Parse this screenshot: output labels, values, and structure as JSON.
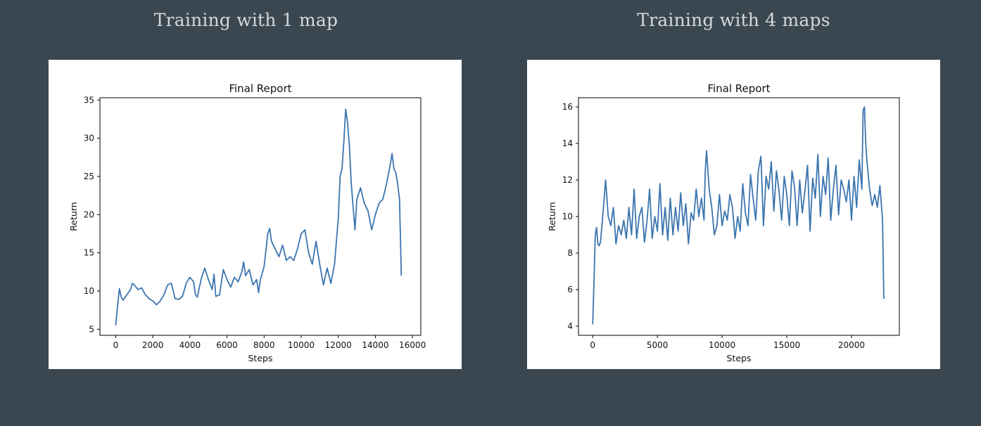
{
  "panels": [
    {
      "heading": "Training with 1 map"
    },
    {
      "heading": "Training with 4 maps"
    }
  ],
  "colors": {
    "background": "#3a4750",
    "line": "#3b75af"
  },
  "chart_data": [
    {
      "type": "line",
      "title": "Final Report",
      "xlabel": "Steps",
      "ylabel": "Return",
      "xlim": [
        -850,
        16450
      ],
      "ylim": [
        4.2,
        35.3
      ],
      "xticks": [
        0,
        2000,
        4000,
        6000,
        8000,
        10000,
        12000,
        14000,
        16000
      ],
      "yticks": [
        5,
        10,
        15,
        20,
        25,
        30,
        35
      ],
      "grid": false,
      "series": [
        {
          "x": [
            0,
            100,
            200,
            300,
            400,
            600,
            800,
            900,
            1000,
            1200,
            1400,
            1600,
            1800,
            2000,
            2200,
            2400,
            2600,
            2800,
            3000,
            3200,
            3400,
            3600,
            3800,
            4000,
            4200,
            4300,
            4400,
            4600,
            4800,
            5000,
            5200,
            5300,
            5400,
            5600,
            5800,
            6000,
            6200,
            6400,
            6600,
            6800,
            6900,
            7000,
            7200,
            7400,
            7600,
            7700,
            7800,
            8000,
            8200,
            8300,
            8400,
            8600,
            8800,
            9000,
            9200,
            9400,
            9600,
            9800,
            10000,
            10200,
            10400,
            10600,
            10800,
            11000,
            11200,
            11400,
            11600,
            11800,
            12000,
            12100,
            12200,
            12300,
            12400,
            12500,
            12600,
            12700,
            12800,
            12900,
            13000,
            13200,
            13400,
            13600,
            13800,
            14000,
            14200,
            14400,
            14600,
            14800,
            14900,
            15000,
            15100,
            15200,
            15300,
            15400
          ],
          "y": [
            5.5,
            8,
            10.3,
            9.2,
            8.8,
            9.5,
            10.2,
            11,
            10.8,
            10.2,
            10.4,
            9.5,
            9,
            8.7,
            8.2,
            8.7,
            9.5,
            10.8,
            11,
            9,
            8.9,
            9.3,
            11,
            11.8,
            11.2,
            9.5,
            9.2,
            11.5,
            13,
            11.5,
            10.2,
            12.2,
            9.3,
            9.5,
            12.8,
            11.5,
            10.5,
            11.8,
            11.2,
            12.5,
            13.8,
            12,
            12.8,
            10.8,
            11.5,
            9.8,
            11.5,
            13.2,
            17.5,
            18.2,
            16.5,
            15.5,
            14.5,
            16,
            14,
            14.5,
            14,
            15.5,
            17.5,
            18,
            15,
            13.5,
            16.5,
            13.5,
            10.8,
            13,
            11,
            13.5,
            19.5,
            25,
            26,
            29.5,
            33.8,
            32,
            29,
            24,
            21,
            18,
            22,
            23.5,
            21.5,
            20.5,
            18,
            20,
            21.5,
            22,
            24,
            26.5,
            28,
            26,
            25.5,
            24,
            22,
            12
          ]
        }
      ]
    },
    {
      "type": "line",
      "title": "Final Report",
      "xlabel": "Steps",
      "ylabel": "Return",
      "xlim": [
        -1100,
        23700
      ],
      "ylim": [
        3.5,
        16.5
      ],
      "xticks": [
        0,
        5000,
        10000,
        15000,
        20000
      ],
      "yticks": [
        4,
        6,
        8,
        10,
        12,
        14,
        16
      ],
      "grid": false,
      "series": [
        {
          "x": [
            0,
            100,
            200,
            300,
            400,
            500,
            600,
            800,
            1000,
            1200,
            1400,
            1600,
            1800,
            2000,
            2200,
            2400,
            2600,
            2800,
            3000,
            3200,
            3400,
            3600,
            3800,
            4000,
            4200,
            4400,
            4600,
            4800,
            5000,
            5200,
            5400,
            5600,
            5800,
            6000,
            6200,
            6400,
            6600,
            6800,
            7000,
            7200,
            7400,
            7600,
            7800,
            8000,
            8200,
            8400,
            8600,
            8700,
            8800,
            9000,
            9200,
            9400,
            9600,
            9800,
            10000,
            10200,
            10400,
            10600,
            10800,
            11000,
            11200,
            11400,
            11600,
            11800,
            12000,
            12200,
            12400,
            12600,
            12800,
            13000,
            13200,
            13400,
            13600,
            13800,
            14000,
            14200,
            14400,
            14600,
            14800,
            15000,
            15200,
            15400,
            15600,
            15800,
            16000,
            16200,
            16400,
            16600,
            16800,
            17000,
            17200,
            17400,
            17600,
            17800,
            18000,
            18200,
            18400,
            18600,
            18800,
            19000,
            19200,
            19400,
            19600,
            19800,
            20000,
            20200,
            20400,
            20600,
            20800,
            20900,
            21000,
            21100,
            21200,
            21400,
            21600,
            21800,
            22000,
            22200,
            22400,
            22500
          ],
          "y": [
            4.1,
            6.5,
            9,
            9.4,
            8.5,
            8.4,
            8.6,
            10.2,
            12,
            10,
            9.5,
            10.5,
            8.5,
            9.5,
            9,
            9.8,
            8.8,
            10.5,
            9,
            11.5,
            8.8,
            10,
            10.5,
            8.6,
            9.8,
            11.5,
            8.8,
            10,
            9.2,
            11.8,
            9,
            10.5,
            8.7,
            11,
            9,
            10.5,
            9.2,
            11.3,
            9.5,
            10.7,
            8.5,
            10.2,
            9.8,
            11.5,
            10,
            11,
            9.8,
            12.5,
            13.6,
            11.5,
            10.5,
            9,
            9.5,
            11.2,
            9.5,
            10.3,
            9.8,
            11.2,
            10.5,
            8.8,
            10,
            9.2,
            11.8,
            10.2,
            9.5,
            12.3,
            11,
            9.8,
            12.5,
            13.3,
            9.5,
            12.2,
            11.5,
            13,
            10.3,
            12.5,
            11.4,
            9.8,
            12.2,
            11.2,
            9.5,
            12.5,
            11.6,
            9.5,
            12,
            10.2,
            11.4,
            12.8,
            9.2,
            12.1,
            11,
            13.4,
            10,
            12.2,
            11.2,
            13.2,
            9.8,
            11.5,
            12.8,
            10.1,
            12,
            11.5,
            10.8,
            12,
            9.8,
            12.2,
            10.5,
            13.1,
            11.5,
            15.8,
            16,
            14,
            13,
            11.5,
            10.6,
            11.2,
            10.5,
            11.7,
            9.8,
            5.5
          ]
        }
      ]
    }
  ]
}
